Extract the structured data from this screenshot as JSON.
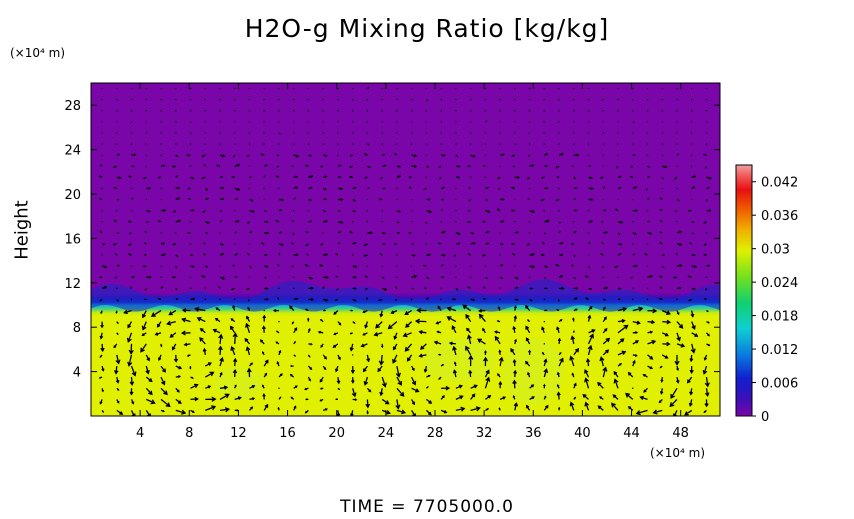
{
  "chart_data": {
    "type": "heatmap",
    "title": "H2O-g Mixing Ratio [kg/kg]",
    "ylabel": "Height",
    "xunit": "(×10⁴ m)",
    "yunit": "(×10⁴ m)",
    "footer": "TIME  =  7705000.0",
    "xlim": [
      0,
      51.2
    ],
    "ylim": [
      0,
      30
    ],
    "xticks": [
      "4",
      "8",
      "12",
      "16",
      "20",
      "24",
      "28",
      "32",
      "36",
      "40",
      "44",
      "48"
    ],
    "xtick_values": [
      4,
      8,
      12,
      16,
      20,
      24,
      28,
      32,
      36,
      40,
      44,
      48
    ],
    "yticks": [
      "4",
      "8",
      "12",
      "16",
      "20",
      "24",
      "28"
    ],
    "ytick_values": [
      4,
      8,
      12,
      16,
      20,
      24,
      28
    ],
    "colorbar": {
      "range": [
        0,
        0.045
      ],
      "ticks": [
        "0",
        "0.006",
        "0.012",
        "0.018",
        "0.024",
        "0.03",
        "0.036",
        "0.042"
      ],
      "tick_values": [
        0,
        0.006,
        0.012,
        0.018,
        0.024,
        0.03,
        0.036,
        0.042
      ]
    },
    "field": {
      "upper_value": 0.0,
      "lower_value": 0.029,
      "interface_height": 10.2
    },
    "overlay": "wind vectors",
    "colors": {
      "dry": "#7a05a9",
      "moist": "#e0f000",
      "interface": "#1428c8"
    }
  }
}
